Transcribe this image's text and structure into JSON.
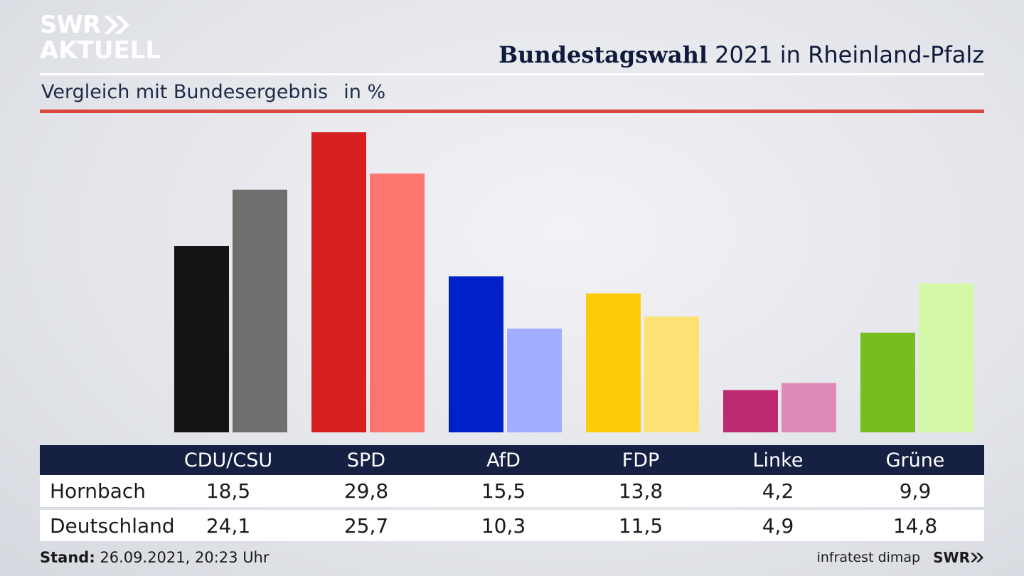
{
  "brand": {
    "logo_top": "SWR",
    "logo_bottom": "AKTUELL",
    "footer_logo": "SWR"
  },
  "header": {
    "title_bold": "Bundestagswahl",
    "title_rest": "2021 in Rheinland-Pfalz",
    "subtitle": "Vergleich mit Bundesergebnis",
    "unit": "in %"
  },
  "table": {
    "headers": [
      "CDU/CSU",
      "SPD",
      "AfD",
      "FDP",
      "Linke",
      "Grüne"
    ],
    "rows": [
      {
        "label": "Hornbach",
        "values": [
          "18,5",
          "29,8",
          "15,5",
          "13,8",
          "4,2",
          "9,9"
        ]
      },
      {
        "label": "Deutschland",
        "values": [
          "24,1",
          "25,7",
          "10,3",
          "11,5",
          "4,9",
          "14,8"
        ]
      }
    ]
  },
  "footer": {
    "stand_label": "Stand:",
    "stand_value": "26.09.2021, 20:23 Uhr",
    "source": "infratest dimap"
  },
  "chart_data": {
    "type": "bar",
    "title": "Bundestagswahl 2021 in Rheinland-Pfalz",
    "subtitle": "Vergleich mit Bundesergebnis",
    "ylabel": "in %",
    "categories": [
      "CDU/CSU",
      "SPD",
      "AfD",
      "FDP",
      "Linke",
      "Grüne"
    ],
    "ylim": [
      0,
      30
    ],
    "grid": false,
    "series": [
      {
        "name": "Hornbach",
        "values": [
          18.5,
          29.8,
          15.5,
          13.8,
          4.2,
          9.9
        ],
        "colors": [
          "#141414",
          "#d61f1f",
          "#0020c8",
          "#ffcc0a",
          "#be2a72",
          "#78bd1f"
        ]
      },
      {
        "name": "Deutschland",
        "values": [
          24.1,
          25.7,
          10.3,
          11.5,
          4.9,
          14.8
        ],
        "colors": [
          "#706f6d",
          "#fe7670",
          "#a1adff",
          "#fde174",
          "#e08ab8",
          "#d4f7a8"
        ]
      }
    ]
  }
}
